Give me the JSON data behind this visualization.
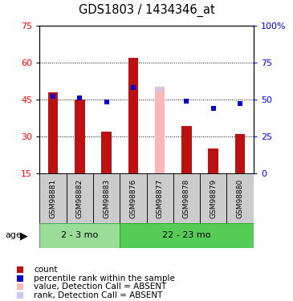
{
  "title": "GDS1803 / 1434346_at",
  "samples": [
    "GSM98881",
    "GSM98882",
    "GSM98883",
    "GSM98876",
    "GSM98877",
    "GSM98878",
    "GSM98879",
    "GSM98880"
  ],
  "groups": [
    "2 - 3 mo",
    "22 - 23 mo"
  ],
  "group_spans": [
    3,
    5
  ],
  "bar_values": [
    48,
    45,
    32,
    62,
    null,
    34,
    25,
    31
  ],
  "absent_bar_value": 50,
  "absent_bar_index": 4,
  "absent_bar_color": "#ffb8b8",
  "rank_values": [
    52,
    51,
    48,
    58,
    null,
    49,
    44,
    47
  ],
  "absent_rank_value": 57,
  "absent_rank_index": 4,
  "absent_rank_color": "#c8c8ff",
  "bar_color": "#bb1111",
  "rank_color": "#0000cc",
  "ymin": 15,
  "ymax": 75,
  "yticks": [
    15,
    30,
    45,
    60,
    75
  ],
  "right_yticks": [
    0,
    25,
    50,
    75,
    100
  ],
  "right_ytick_labels": [
    "0",
    "25",
    "50",
    "75",
    "100%"
  ],
  "gridlines": [
    30,
    45,
    60
  ],
  "legend_items": [
    {
      "label": "count",
      "color": "#bb1111"
    },
    {
      "label": "percentile rank within the sample",
      "color": "#0000cc"
    },
    {
      "label": "value, Detection Call = ABSENT",
      "color": "#ffb8b8"
    },
    {
      "label": "rank, Detection Call = ABSENT",
      "color": "#c8c8ff"
    }
  ],
  "cell_bg": "#cccccc",
  "group1_color": "#99dd99",
  "group2_color": "#55cc55"
}
